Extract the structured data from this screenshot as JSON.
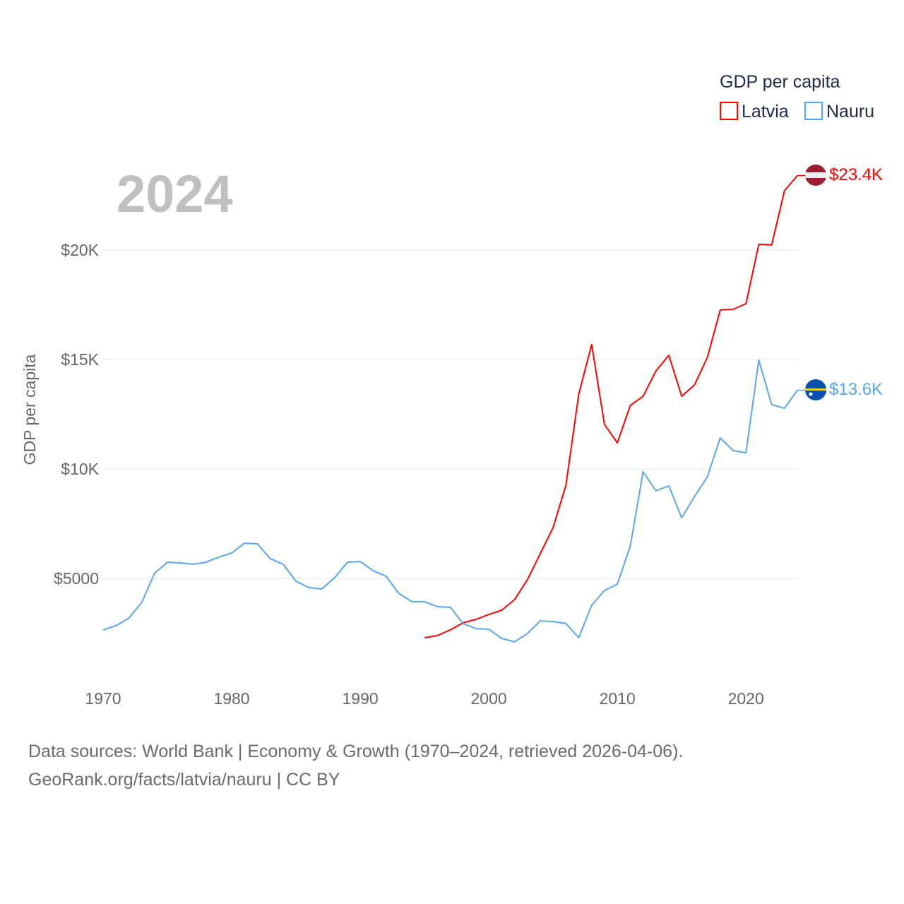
{
  "chart_data": {
    "type": "line",
    "title": "GDP per capita",
    "year_label": "2024",
    "ylabel": "GDP per capita",
    "xlabel": "",
    "xlim": [
      1970,
      2024
    ],
    "ylim": [
      0,
      23400
    ],
    "x_ticks": [
      1970,
      1980,
      1990,
      2000,
      2010,
      2020
    ],
    "y_ticks": [
      {
        "value": 5000,
        "label": "$5000"
      },
      {
        "value": 10000,
        "label": "$10K"
      },
      {
        "value": 15000,
        "label": "$15K"
      },
      {
        "value": 20000,
        "label": "$20K"
      }
    ],
    "grid": true,
    "legend": {
      "title": "GDP per capita",
      "placement": "top-right"
    },
    "series": [
      {
        "name": "Latvia",
        "color": "#ff0000",
        "end_label": "$23.4K",
        "flag": "latvia-flag",
        "start_year": 1995,
        "values": [
          2290,
          2390,
          2650,
          2970,
          3130,
          3350,
          3550,
          4030,
          4940,
          6130,
          7320,
          9260,
          13420,
          15680,
          12030,
          11190,
          12900,
          13320,
          14480,
          15190,
          13320,
          13840,
          15100,
          17260,
          17290,
          17550,
          20260,
          20230,
          22710,
          23400
        ]
      },
      {
        "name": "Nauru",
        "color": "#5aa5ef",
        "end_label": "$13.6K",
        "flag": "nauru-flag",
        "start_year": 1970,
        "values": [
          2650,
          2840,
          3190,
          3900,
          5230,
          5740,
          5710,
          5650,
          5740,
          5970,
          6160,
          6610,
          6580,
          5900,
          5650,
          4870,
          4580,
          4520,
          5030,
          5740,
          5770,
          5350,
          5100,
          4320,
          3940,
          3940,
          3710,
          3680,
          2940,
          2710,
          2680,
          2260,
          2100,
          2480,
          3060,
          3030,
          2940,
          2290,
          3770,
          4450,
          4740,
          6480,
          9870,
          9000,
          9230,
          7770,
          8740,
          9650,
          11420,
          10840,
          10740,
          14970,
          12940,
          12770,
          13600
        ]
      }
    ]
  },
  "footer": {
    "line1": "Data sources: World Bank | Economy & Growth (1970–2024, retrieved 2026-04-06).",
    "line2": "GeoRank.org/facts/latvia/nauru | CC BY"
  }
}
